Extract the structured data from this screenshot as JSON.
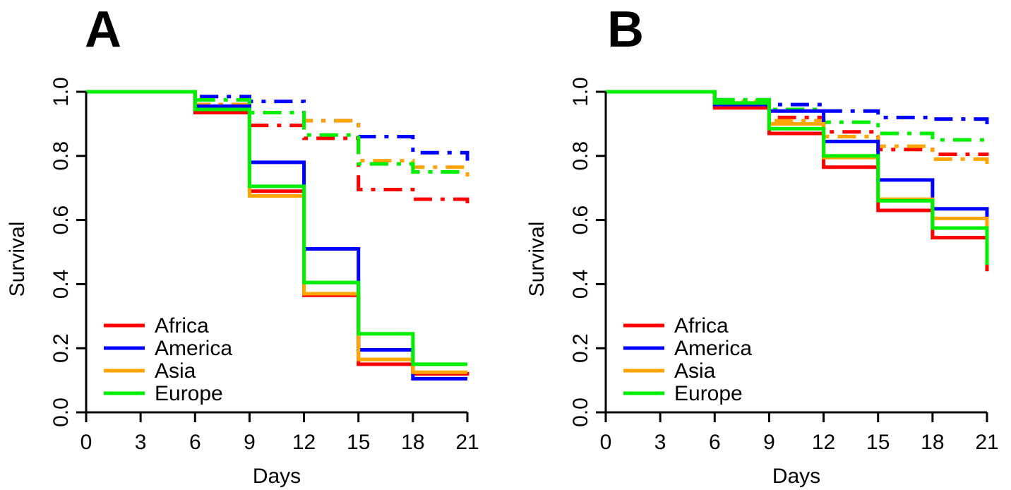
{
  "chart_data": [
    {
      "type": "line",
      "panel": "A",
      "xlabel": "Days",
      "ylabel": "Survival",
      "xlim": [
        0,
        21
      ],
      "ylim": [
        0,
        1
      ],
      "xticks": [
        0,
        3,
        6,
        9,
        12,
        15,
        18,
        21
      ],
      "yticks": [
        0.0,
        0.2,
        0.4,
        0.6,
        0.8,
        1.0
      ],
      "xtick_labels": [
        "0",
        "3",
        "6",
        "9",
        "12",
        "15",
        "18",
        "21"
      ],
      "ytick_labels": [
        "0.0",
        "0.2",
        "0.4",
        "0.6",
        "0.8",
        "1.0"
      ],
      "grid": false,
      "legend_position": "bottom-left",
      "legend": [
        "Africa",
        "America",
        "Asia",
        "Europe"
      ],
      "colors": {
        "Africa": "#ff0000",
        "America": "#0000ff",
        "Asia": "#ffa500",
        "Europe": "#00ee00"
      },
      "series": [
        {
          "region": "Africa",
          "style": "solid",
          "x": [
            0,
            6,
            9,
            12,
            15,
            18,
            21
          ],
          "y": [
            1.0,
            0.935,
            0.69,
            0.365,
            0.15,
            0.12,
            0.115
          ]
        },
        {
          "region": "America",
          "style": "solid",
          "x": [
            0,
            6,
            9,
            12,
            15,
            18,
            21
          ],
          "y": [
            1.0,
            0.955,
            0.78,
            0.51,
            0.195,
            0.105,
            0.105
          ]
        },
        {
          "region": "Asia",
          "style": "solid",
          "x": [
            0,
            6,
            9,
            12,
            15,
            18,
            21
          ],
          "y": [
            1.0,
            0.945,
            0.675,
            0.37,
            0.165,
            0.125,
            0.125
          ]
        },
        {
          "region": "Europe",
          "style": "solid",
          "x": [
            0,
            6,
            9,
            12,
            15,
            18,
            21
          ],
          "y": [
            1.0,
            0.945,
            0.705,
            0.405,
            0.245,
            0.15,
            0.15
          ]
        },
        {
          "region": "Africa",
          "style": "dashdot",
          "x": [
            0,
            6,
            9,
            12,
            15,
            18,
            21
          ],
          "y": [
            1.0,
            0.96,
            0.895,
            0.855,
            0.695,
            0.665,
            0.65
          ]
        },
        {
          "region": "America",
          "style": "dashdot",
          "x": [
            0,
            6,
            9,
            12,
            15,
            18,
            21
          ],
          "y": [
            1.0,
            0.985,
            0.97,
            0.91,
            0.86,
            0.81,
            0.785
          ]
        },
        {
          "region": "Asia",
          "style": "dashdot",
          "x": [
            0,
            6,
            9,
            12,
            15,
            18,
            21
          ],
          "y": [
            1.0,
            0.96,
            0.935,
            0.91,
            0.785,
            0.765,
            0.71
          ]
        },
        {
          "region": "Europe",
          "style": "dashdot",
          "x": [
            0,
            6,
            9,
            12,
            15,
            18,
            21
          ],
          "y": [
            1.0,
            0.975,
            0.935,
            0.865,
            0.775,
            0.75,
            0.75
          ]
        }
      ]
    },
    {
      "type": "line",
      "panel": "B",
      "xlabel": "Days",
      "ylabel": "Survival",
      "xlim": [
        0,
        21
      ],
      "ylim": [
        0,
        1
      ],
      "xticks": [
        0,
        3,
        6,
        9,
        12,
        15,
        18,
        21
      ],
      "yticks": [
        0.0,
        0.2,
        0.4,
        0.6,
        0.8,
        1.0
      ],
      "xtick_labels": [
        "0",
        "3",
        "6",
        "9",
        "12",
        "15",
        "18",
        "21"
      ],
      "ytick_labels": [
        "0.0",
        "0.2",
        "0.4",
        "0.6",
        "0.8",
        "1.0"
      ],
      "grid": false,
      "legend_position": "bottom-left",
      "legend": [
        "Africa",
        "America",
        "Asia",
        "Europe"
      ],
      "colors": {
        "Africa": "#ff0000",
        "America": "#0000ff",
        "Asia": "#ffa500",
        "Europe": "#00ee00"
      },
      "series": [
        {
          "region": "Africa",
          "style": "solid",
          "x": [
            0,
            6,
            9,
            12,
            15,
            18,
            21
          ],
          "y": [
            1.0,
            0.95,
            0.87,
            0.765,
            0.63,
            0.545,
            0.44
          ]
        },
        {
          "region": "America",
          "style": "solid",
          "x": [
            0,
            6,
            9,
            12,
            15,
            18,
            21
          ],
          "y": [
            1.0,
            0.96,
            0.94,
            0.845,
            0.725,
            0.635,
            0.6
          ]
        },
        {
          "region": "Asia",
          "style": "solid",
          "x": [
            0,
            6,
            9,
            12,
            15,
            18,
            21
          ],
          "y": [
            1.0,
            0.965,
            0.9,
            0.795,
            0.665,
            0.605,
            0.575
          ]
        },
        {
          "region": "Europe",
          "style": "solid",
          "x": [
            0,
            6,
            9,
            12,
            15,
            18,
            21
          ],
          "y": [
            1.0,
            0.965,
            0.885,
            0.8,
            0.66,
            0.575,
            0.46
          ]
        },
        {
          "region": "Africa",
          "style": "dashdot",
          "x": [
            0,
            6,
            9,
            12,
            15,
            18,
            21
          ],
          "y": [
            1.0,
            0.955,
            0.92,
            0.875,
            0.82,
            0.805,
            0.8
          ]
        },
        {
          "region": "America",
          "style": "dashdot",
          "x": [
            0,
            6,
            9,
            12,
            15,
            18,
            21
          ],
          "y": [
            1.0,
            0.975,
            0.96,
            0.94,
            0.92,
            0.915,
            0.88
          ]
        },
        {
          "region": "Asia",
          "style": "dashdot",
          "x": [
            0,
            6,
            9,
            12,
            15,
            18,
            21
          ],
          "y": [
            1.0,
            0.97,
            0.91,
            0.86,
            0.83,
            0.79,
            0.775
          ]
        },
        {
          "region": "Europe",
          "style": "dashdot",
          "x": [
            0,
            6,
            9,
            12,
            15,
            18,
            21
          ],
          "y": [
            1.0,
            0.975,
            0.945,
            0.905,
            0.87,
            0.85,
            0.845
          ]
        }
      ]
    }
  ]
}
